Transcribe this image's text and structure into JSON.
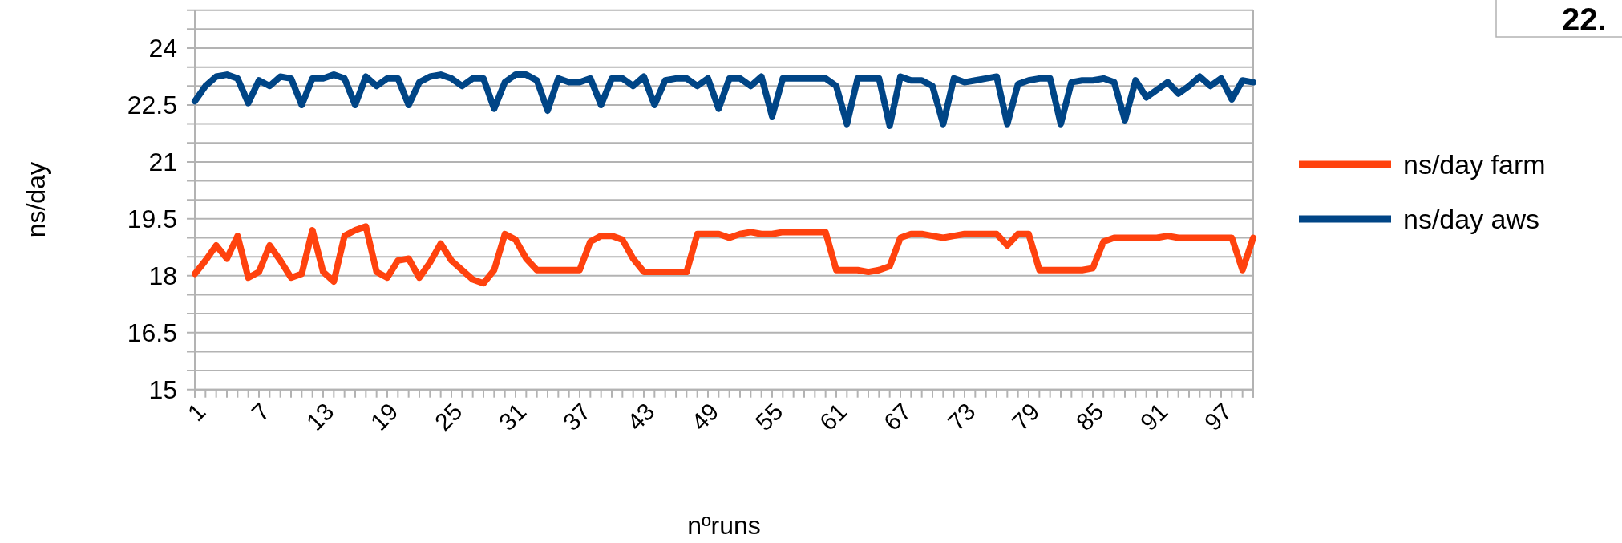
{
  "chart_data": {
    "type": "line",
    "xlabel": "nºruns",
    "ylabel": "ns/day",
    "annotations": [
      "22."
    ],
    "categories": [
      "1",
      null,
      null,
      null,
      null,
      null,
      "7",
      null,
      null,
      null,
      null,
      null,
      "13",
      null,
      null,
      null,
      null,
      null,
      "19",
      null,
      null,
      null,
      null,
      null,
      "25",
      null,
      null,
      null,
      null,
      null,
      "31",
      null,
      null,
      null,
      null,
      null,
      "37",
      null,
      null,
      null,
      null,
      null,
      "43",
      null,
      null,
      null,
      null,
      null,
      "49",
      null,
      null,
      null,
      null,
      null,
      "55",
      null,
      null,
      null,
      null,
      null,
      "61",
      null,
      null,
      null,
      null,
      null,
      "67",
      null,
      null,
      null,
      null,
      null,
      "73",
      null,
      null,
      null,
      null,
      null,
      "79",
      null,
      null,
      null,
      null,
      null,
      "85",
      null,
      null,
      null,
      null,
      null,
      "91",
      null,
      null,
      null,
      null,
      null,
      "97",
      null,
      null,
      null
    ],
    "series": [
      {
        "name": "ns/day farm",
        "color": "#ff420e",
        "values": [
          18.05,
          18.4,
          18.8,
          18.45,
          19.05,
          17.95,
          18.1,
          18.8,
          18.4,
          17.95,
          18.05,
          19.2,
          18.1,
          17.85,
          19.05,
          19.2,
          19.3,
          18.1,
          17.95,
          18.4,
          18.45,
          17.95,
          18.35,
          18.85,
          18.4,
          18.15,
          17.9,
          17.8,
          18.15,
          19.1,
          18.95,
          18.45,
          18.15,
          18.15,
          18.15,
          18.15,
          18.15,
          18.9,
          19.05,
          19.05,
          18.95,
          18.45,
          18.1,
          18.1,
          18.1,
          18.1,
          18.1,
          19.1,
          19.1,
          19.1,
          19.0,
          19.1,
          19.15,
          19.1,
          19.1,
          19.15,
          19.15,
          19.15,
          19.15,
          19.15,
          18.15,
          18.15,
          18.15,
          18.1,
          18.15,
          18.25,
          19.0,
          19.1,
          19.1,
          19.05,
          19.0,
          19.05,
          19.1,
          19.1,
          19.1,
          19.1,
          18.8,
          19.1,
          19.1,
          18.15,
          18.15,
          18.15,
          18.15,
          18.15,
          18.2,
          18.9,
          19.0,
          19.0,
          19.0,
          19.0,
          19.0,
          19.05,
          19.0,
          19.0,
          19.0,
          19.0,
          19.0,
          19.0,
          18.15,
          19.0
        ]
      },
      {
        "name": "ns/day aws",
        "color": "#004586",
        "values": [
          22.6,
          23.0,
          23.25,
          23.3,
          23.2,
          22.55,
          23.15,
          23.0,
          23.25,
          23.2,
          22.5,
          23.2,
          23.2,
          23.3,
          23.2,
          22.5,
          23.25,
          23.0,
          23.2,
          23.2,
          22.5,
          23.1,
          23.25,
          23.3,
          23.2,
          23.0,
          23.2,
          23.2,
          22.4,
          23.1,
          23.3,
          23.3,
          23.15,
          22.35,
          23.2,
          23.1,
          23.1,
          23.2,
          22.5,
          23.2,
          23.2,
          23.0,
          23.25,
          22.5,
          23.15,
          23.2,
          23.2,
          23.0,
          23.2,
          22.4,
          23.2,
          23.2,
          23.0,
          23.25,
          22.2,
          23.2,
          23.2,
          23.2,
          23.2,
          23.2,
          23.0,
          22.0,
          23.2,
          23.2,
          23.2,
          21.95,
          23.25,
          23.15,
          23.15,
          23.0,
          22.0,
          23.2,
          23.1,
          23.15,
          23.2,
          23.25,
          22.0,
          23.05,
          23.15,
          23.2,
          23.2,
          22.0,
          23.1,
          23.15,
          23.15,
          23.2,
          23.1,
          22.1,
          23.15,
          22.7,
          22.9,
          23.1,
          22.8,
          23.0,
          23.25,
          23.0,
          23.2,
          22.65,
          23.15,
          23.1
        ]
      }
    ],
    "ylim": [
      15,
      25
    ],
    "yticks": [
      15,
      {
        "value": 15.5,
        "label": null
      },
      {
        "value": 16,
        "label": null
      },
      16.5,
      {
        "value": 17,
        "label": null
      },
      {
        "value": 17.5,
        "label": null
      },
      18,
      {
        "value": 18.5,
        "label": null
      },
      {
        "value": 19,
        "label": null
      },
      19.5,
      {
        "value": 20,
        "label": null
      },
      {
        "value": 20.5,
        "label": null
      },
      21,
      {
        "value": 21.5,
        "label": null
      },
      {
        "value": 22,
        "label": null
      },
      22.5,
      {
        "value": 23,
        "label": null
      },
      {
        "value": 23.5,
        "label": null
      },
      24,
      {
        "value": 24.5,
        "label": null
      },
      {
        "value": 25,
        "label": null
      }
    ],
    "grid": "y",
    "legend": "right",
    "marker": "none",
    "line_style": "solid"
  }
}
